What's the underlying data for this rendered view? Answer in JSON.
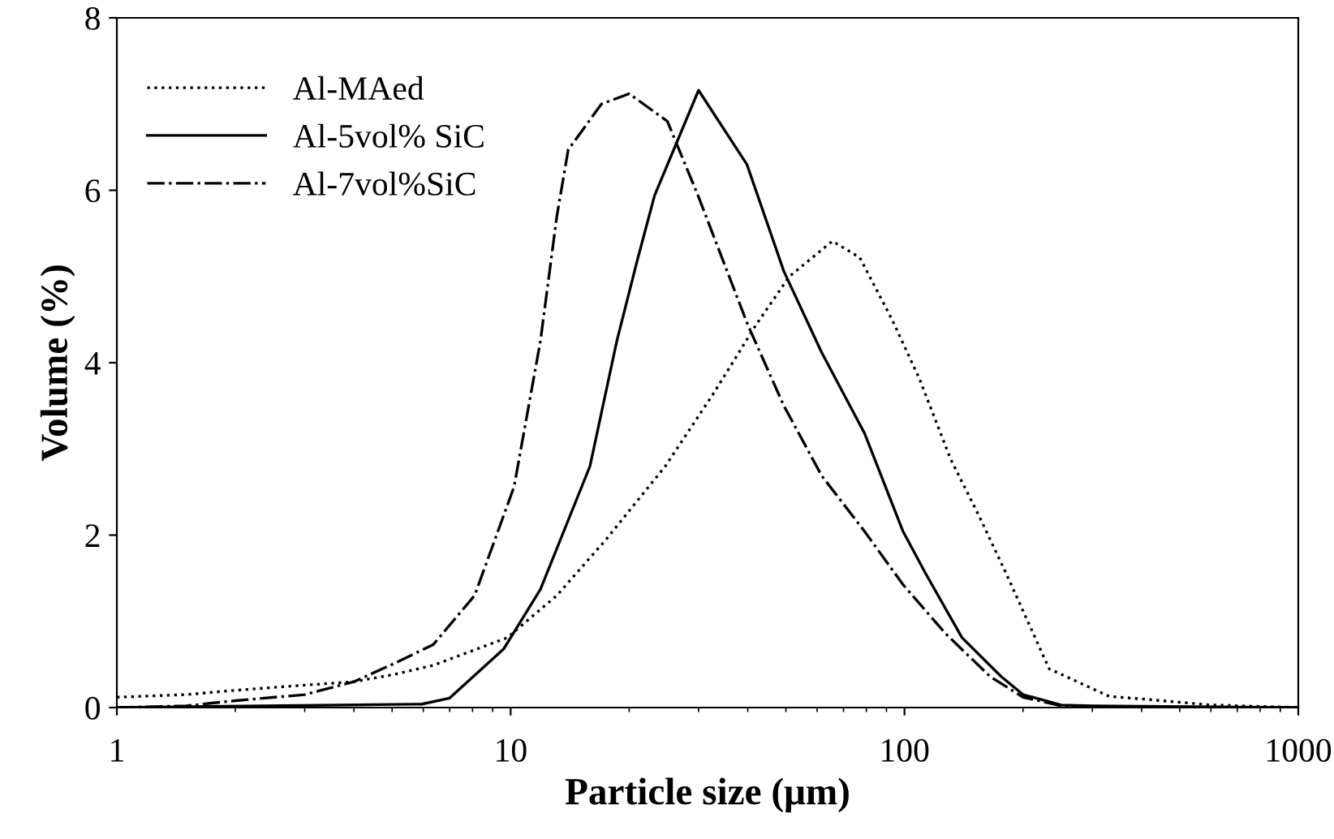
{
  "chart_data": {
    "type": "line",
    "xlabel": "Particle size (μm)",
    "ylabel": "Volume (%)",
    "log": "x",
    "xlim": [
      1,
      1000
    ],
    "xticks": [
      1,
      10,
      100,
      1000
    ],
    "ylim": [
      0,
      8
    ],
    "yticks": [
      0,
      2,
      4,
      6,
      8
    ],
    "grid": false,
    "legend": "top left",
    "series": [
      {
        "name": "Al-MAed",
        "color": "#000000",
        "line_style": "dotted",
        "x": [
          1,
          1.5,
          2,
          3,
          4,
          5,
          6.36,
          9.8,
          13.1,
          17.4,
          24.7,
          32.6,
          42,
          51,
          65.6,
          77,
          93,
          109,
          131,
          154,
          181,
          233,
          331,
          400,
          600,
          1000
        ],
        "values": [
          0.12,
          0.15,
          0.2,
          0.26,
          0.3,
          0.38,
          0.49,
          0.81,
          1.3,
          1.94,
          2.8,
          3.63,
          4.44,
          5.0,
          5.41,
          5.22,
          4.5,
          3.82,
          2.88,
          2.24,
          1.56,
          0.45,
          0.13,
          0.1,
          0.03,
          0
        ]
      },
      {
        "name": "Al-5vol% SiC",
        "color": "#000000",
        "line_style": "solid",
        "x": [
          1,
          5.95,
          7,
          9.6,
          11.9,
          15.9,
          18.6,
          21,
          23.2,
          30,
          39.8,
          49.4,
          61.6,
          79.2,
          99,
          113,
          140,
          176,
          200,
          250,
          300,
          1000
        ],
        "values": [
          0,
          0.04,
          0.11,
          0.68,
          1.37,
          2.8,
          4.25,
          5.2,
          5.94,
          7.16,
          6.3,
          5.06,
          4.12,
          3.18,
          2.05,
          1.56,
          0.81,
          0.36,
          0.15,
          0.03,
          0.02,
          0
        ]
      },
      {
        "name": "Al-7vol%SiC",
        "color": "#000000",
        "line_style": "dashdot",
        "x": [
          1,
          1.5,
          2,
          3,
          4,
          5,
          6.36,
          8.1,
          10.2,
          11.9,
          13.1,
          14,
          17,
          20,
          25,
          29.9,
          40,
          49.4,
          61.6,
          79,
          99,
          127,
          165,
          200,
          250,
          300,
          1000
        ],
        "values": [
          0,
          0.02,
          0.08,
          0.15,
          0.3,
          0.5,
          0.73,
          1.3,
          2.56,
          4.25,
          5.7,
          6.47,
          7.0,
          7.12,
          6.8,
          5.94,
          4.44,
          3.5,
          2.69,
          2.05,
          1.43,
          0.86,
          0.36,
          0.12,
          0.02,
          0,
          0
        ]
      }
    ]
  }
}
